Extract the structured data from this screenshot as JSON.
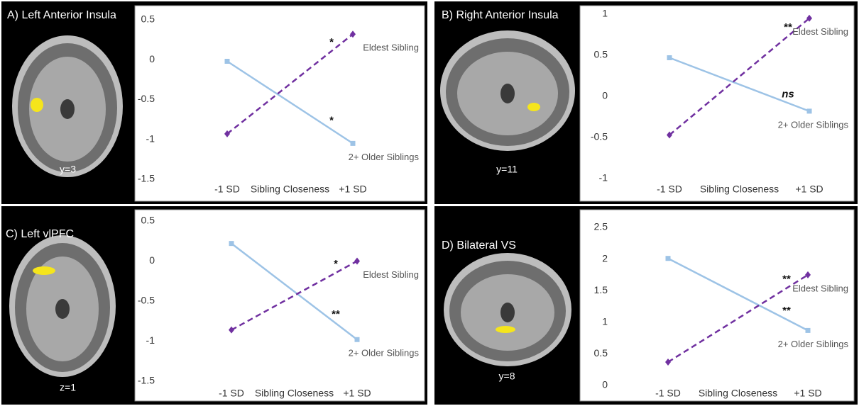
{
  "chart_data": [
    {
      "type": "line",
      "title": "A) Left Anterior Insula",
      "slice_label": "y=3",
      "x_label": "Sibling Closeness",
      "categories": [
        "-1 SD",
        "+1 SD"
      ],
      "series": [
        {
          "name": "2+ Older Siblings",
          "color": "#9dc3e6",
          "line_style": "solid",
          "marker": "square",
          "values": [
            -0.02,
            -1.05
          ],
          "significance": "*"
        },
        {
          "name": "Eldest Sibling",
          "color": "#7030a0",
          "line_style": "dashed",
          "marker": "diamond",
          "values": [
            -0.93,
            0.32
          ],
          "significance": "*"
        }
      ],
      "ylim": [
        -1.5,
        0.5
      ],
      "yticks": [
        -1.5,
        -1,
        -0.5,
        0,
        0.5
      ]
    },
    {
      "type": "line",
      "title": "B) Right Anterior Insula",
      "slice_label": "y=11",
      "x_label": "Sibling Closeness",
      "categories": [
        "-1 SD",
        "+1 SD"
      ],
      "series": [
        {
          "name": "2+ Older Siblings",
          "color": "#9dc3e6",
          "line_style": "solid",
          "marker": "square",
          "values": [
            0.47,
            -0.18
          ],
          "significance": "ns"
        },
        {
          "name": "Eldest Sibling",
          "color": "#7030a0",
          "line_style": "dashed",
          "marker": "diamond",
          "values": [
            -0.47,
            0.95
          ],
          "significance": "**"
        }
      ],
      "ylim": [
        -1,
        1
      ],
      "yticks": [
        -1,
        -0.5,
        0,
        0.5,
        1
      ]
    },
    {
      "type": "line",
      "title": "C) Left vlPFC",
      "slice_label": "z=1",
      "x_label": "Sibling Closeness",
      "categories": [
        "-1 SD",
        "+1 SD"
      ],
      "series": [
        {
          "name": "2+ Older Siblings",
          "color": "#9dc3e6",
          "line_style": "solid",
          "marker": "square",
          "values": [
            0.22,
            -0.98
          ],
          "significance": "**"
        },
        {
          "name": "Eldest Sibling",
          "color": "#7030a0",
          "line_style": "dashed",
          "marker": "diamond",
          "values": [
            -0.86,
            0.0
          ],
          "significance": "*"
        }
      ],
      "ylim": [
        -1.5,
        0.5
      ],
      "yticks": [
        -1.5,
        -1,
        -0.5,
        0,
        0.5
      ]
    },
    {
      "type": "line",
      "title": "D) Bilateral VS",
      "slice_label": "y=8",
      "x_label": "Sibling Closeness",
      "categories": [
        "-1 SD",
        "+1 SD"
      ],
      "series": [
        {
          "name": "2+ Older Siblings",
          "color": "#9dc3e6",
          "line_style": "solid",
          "marker": "square",
          "values": [
            2.01,
            0.87
          ],
          "significance": "**"
        },
        {
          "name": "Eldest Sibling",
          "color": "#7030a0",
          "line_style": "dashed",
          "marker": "diamond",
          "values": [
            0.37,
            1.75
          ],
          "significance": "**"
        }
      ],
      "ylim": [
        0,
        2.5
      ],
      "yticks": [
        0,
        0.5,
        1,
        1.5,
        2,
        2.5
      ]
    }
  ]
}
